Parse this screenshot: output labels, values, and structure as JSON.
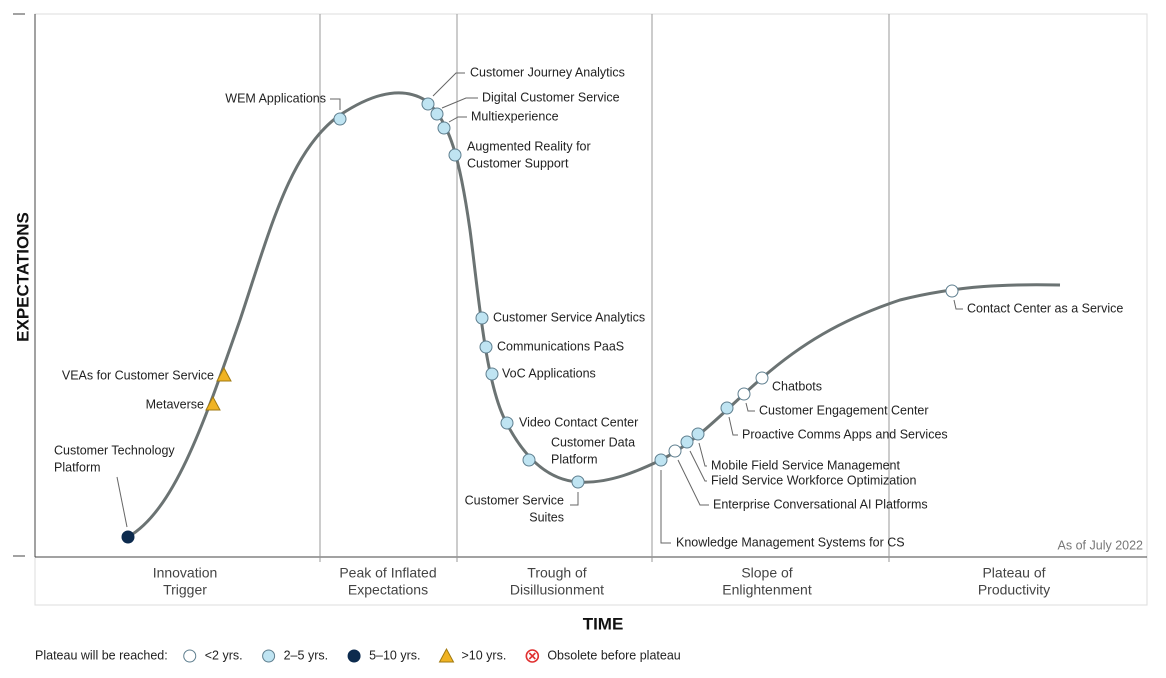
{
  "title_axis_y": "EXPECTATIONS",
  "title_axis_x": "TIME",
  "as_of": "As of July 2022",
  "phases": [
    [
      "Innovation",
      "Trigger"
    ],
    [
      "Peak of Inflated",
      "Expectations"
    ],
    [
      "Trough of",
      "Disillusionment"
    ],
    [
      "Slope of",
      "Enlightenment"
    ],
    [
      "Plateau of",
      "Productivity"
    ]
  ],
  "legend": {
    "title": "Plateau will be reached:",
    "items": [
      {
        "label": "<2 yrs.",
        "color": "#ffffff",
        "shape": "circle"
      },
      {
        "label": "2–5 yrs.",
        "color": "#bfe4f2",
        "shape": "circle"
      },
      {
        "label": "5–10 yrs.",
        "color": "#0d2b4e",
        "shape": "circle"
      },
      {
        "label": ">10 yrs.",
        "color": "#f0b323",
        "shape": "triangle"
      },
      {
        "label": "Obsolete before plateau",
        "color": "#e03030",
        "shape": "cross"
      }
    ]
  },
  "nodes": [
    {
      "label": [
        "Customer Technology",
        "Platform"
      ],
      "color": "#0d2b4e",
      "shape": "circle"
    },
    {
      "label": [
        "Metaverse"
      ],
      "color": "#f0b323",
      "shape": "triangle"
    },
    {
      "label": [
        "VEAs for Customer Service"
      ],
      "color": "#f0b323",
      "shape": "triangle"
    },
    {
      "label": [
        "WEM Applications"
      ],
      "color": "#bfe4f2",
      "shape": "circle"
    },
    {
      "label": [
        "Customer Journey Analytics"
      ],
      "color": "#bfe4f2",
      "shape": "circle"
    },
    {
      "label": [
        "Digital Customer Service"
      ],
      "color": "#bfe4f2",
      "shape": "circle"
    },
    {
      "label": [
        "Multiexperience"
      ],
      "color": "#bfe4f2",
      "shape": "circle"
    },
    {
      "label": [
        "Augmented Reality for",
        "Customer Support"
      ],
      "color": "#bfe4f2",
      "shape": "circle"
    },
    {
      "label": [
        "Customer Service Analytics"
      ],
      "color": "#bfe4f2",
      "shape": "circle"
    },
    {
      "label": [
        "Communications PaaS"
      ],
      "color": "#bfe4f2",
      "shape": "circle"
    },
    {
      "label": [
        "VoC Applications"
      ],
      "color": "#bfe4f2",
      "shape": "circle"
    },
    {
      "label": [
        "Video Contact Center"
      ],
      "color": "#bfe4f2",
      "shape": "circle"
    },
    {
      "label": [
        "Customer Data",
        "Platform"
      ],
      "color": "#bfe4f2",
      "shape": "circle"
    },
    {
      "label": [
        "Customer Service",
        "Suites"
      ],
      "color": "#bfe4f2",
      "shape": "circle"
    },
    {
      "label": [
        "Knowledge Management Systems for CS"
      ],
      "color": "#bfe4f2",
      "shape": "circle"
    },
    {
      "label": [
        "Enterprise Conversational AI Platforms"
      ],
      "color": "#ffffff",
      "shape": "circle"
    },
    {
      "label": [
        "Field Service Workforce Optimization"
      ],
      "color": "#bfe4f2",
      "shape": "circle"
    },
    {
      "label": [
        "Mobile Field Service Management"
      ],
      "color": "#bfe4f2",
      "shape": "circle"
    },
    {
      "label": [
        "Proactive Comms Apps and Services"
      ],
      "color": "#bfe4f2",
      "shape": "circle"
    },
    {
      "label": [
        "Customer Engagement Center"
      ],
      "color": "#ffffff",
      "shape": "circle"
    },
    {
      "label": [
        "Chatbots"
      ],
      "color": "#ffffff",
      "shape": "circle"
    },
    {
      "label": [
        "Contact Center as a Service"
      ],
      "color": "#ffffff",
      "shape": "circle"
    }
  ]
}
